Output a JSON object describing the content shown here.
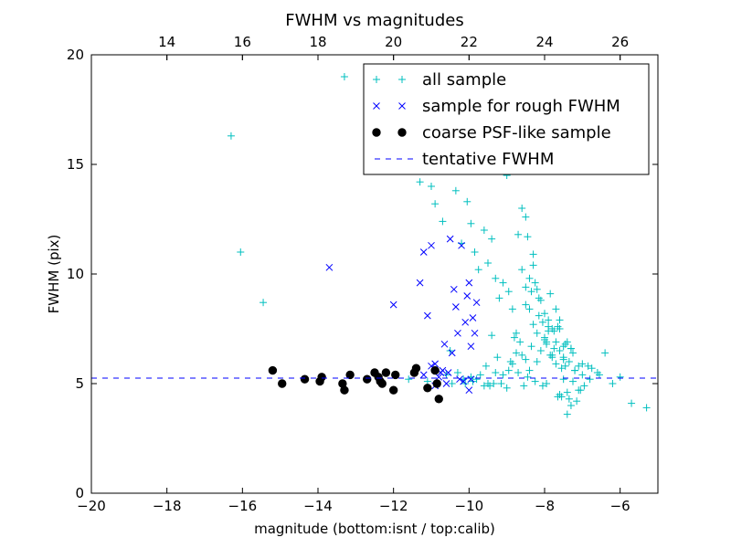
{
  "chart_data": {
    "type": "scatter",
    "title": "FWHM vs magnitudes",
    "xlabel": "magnitude (bottom:isnt / top:calib)",
    "ylabel": "FWHM (pix)",
    "xlim": [
      -20,
      -5
    ],
    "ylim": [
      0,
      20
    ],
    "x_ticks": [
      -20,
      -18,
      -16,
      -14,
      -12,
      -10,
      -8,
      -6
    ],
    "x_tick_labels": [
      "−20",
      "−18",
      "−16",
      "−14",
      "−12",
      "−10",
      "−8",
      "−6"
    ],
    "y_ticks": [
      0,
      5,
      10,
      15,
      20
    ],
    "y_tick_labels": [
      "0",
      "5",
      "10",
      "15",
      "20"
    ],
    "top_axis": {
      "offset": 32.0,
      "ticks": [
        14,
        16,
        18,
        20,
        22,
        24,
        26
      ],
      "tick_labels": [
        "14",
        "16",
        "18",
        "20",
        "22",
        "24",
        "26"
      ]
    },
    "grid": false,
    "legend_position": "top-right",
    "series": [
      {
        "name": "all sample",
        "marker": "plus",
        "color": "#00bfbf",
        "x": [
          -16.3,
          -16.05,
          -15.45,
          -13.3,
          -11.3,
          -11.0,
          -10.9,
          -10.7,
          -10.5,
          -10.35,
          -10.2,
          -10.05,
          -9.95,
          -9.85,
          -9.75,
          -9.6,
          -9.5,
          -9.4,
          -9.3,
          -9.2,
          -9.1,
          -9.0,
          -8.95,
          -8.85,
          -8.8,
          -8.7,
          -8.6,
          -8.5,
          -8.45,
          -8.4,
          -8.3,
          -8.2,
          -8.1,
          -8.0,
          -7.9,
          -7.8,
          -7.7,
          -7.6,
          -7.5,
          -7.35,
          -7.2,
          -7.0,
          -6.8,
          -6.6,
          -6.4,
          -6.2,
          -6.0,
          -5.7,
          -5.3,
          -8.6,
          -8.3,
          -8.1,
          -7.9,
          -8.9,
          -9.1,
          -8.8,
          -8.5,
          -8.2,
          -7.95,
          -7.6,
          -7.45,
          -7.3,
          -8.75,
          -8.35,
          -8.05,
          -7.75,
          -9.4,
          -9.25,
          -8.65,
          -8.15,
          -7.85,
          -7.55,
          -7.25,
          -7.05,
          -6.95,
          -8.5,
          -8.0,
          -7.7,
          -8.4,
          -8.1,
          -7.8,
          -7.5,
          -9.0,
          -8.7,
          -8.25,
          -7.65,
          -7.4,
          -7.15,
          -6.85,
          -9.8,
          -9.7,
          -9.5,
          -8.85,
          -8.55,
          -8.45,
          -8.05,
          -7.95,
          -7.6,
          -7.35,
          -7.1,
          -9.55,
          -9.3,
          -9.15,
          -10.1,
          -9.9,
          -11.6,
          -11.1,
          -10.6,
          -10.45,
          -10.3,
          -10.15,
          -9.95,
          -9.6,
          -9.45,
          -9.35,
          -8.95,
          -8.75,
          -8.35,
          -8.2,
          -7.9,
          -7.65,
          -7.45,
          -7.25,
          -7.0,
          -6.75,
          -6.55,
          -8.6,
          -8.3,
          -8.0,
          -7.75,
          -7.5,
          -7.2,
          -7.3,
          -7.4,
          -7.55,
          -8.4,
          -8.15,
          -7.85,
          -7.7,
          -7.6,
          -7.4,
          -7.3,
          -7.1,
          -8.5,
          -8.25,
          -7.95,
          -7.8,
          -7.5
        ],
        "y": [
          16.3,
          11.0,
          8.7,
          19.0,
          14.2,
          14.0,
          13.2,
          12.4,
          6.5,
          13.8,
          11.4,
          13.3,
          12.3,
          11.0,
          10.2,
          12.0,
          10.5,
          11.6,
          9.8,
          8.9,
          9.6,
          14.5,
          9.2,
          8.4,
          15.8,
          11.8,
          10.2,
          12.6,
          11.7,
          9.8,
          10.4,
          9.3,
          8.8,
          8.2,
          7.9,
          7.5,
          6.9,
          6.5,
          6.2,
          6.0,
          5.6,
          5.4,
          5.2,
          5.5,
          6.4,
          5.0,
          5.3,
          4.1,
          3.9,
          13.0,
          10.9,
          14.8,
          7.6,
          6.0,
          5.4,
          7.1,
          8.6,
          7.3,
          6.8,
          7.9,
          5.8,
          6.6,
          6.4,
          9.2,
          7.8,
          7.4,
          7.2,
          6.2,
          6.9,
          8.1,
          6.3,
          5.7,
          5.1,
          4.7,
          4.9,
          6.1,
          7.0,
          5.9,
          5.6,
          6.5,
          6.2,
          5.2,
          4.8,
          5.5,
          5.1,
          4.4,
          4.6,
          4.2,
          5.8,
          5.2,
          5.4,
          5.0,
          5.9,
          4.9,
          5.3,
          4.9,
          5.0,
          4.5,
          4.3,
          4.7,
          5.8,
          5.5,
          5.0,
          5.0,
          5.1,
          5.2,
          5.1,
          5.4,
          5.0,
          5.5,
          5.2,
          5.3,
          4.9,
          4.9,
          5.0,
          5.6,
          7.3,
          6.7,
          6.0,
          7.4,
          7.6,
          6.8,
          6.4,
          5.9,
          5.7,
          5.4,
          6.3,
          7.7,
          7.1,
          6.6,
          6.1,
          5.6,
          4.0,
          3.6,
          4.4,
          8.4,
          8.9,
          9.1,
          8.4,
          7.5,
          6.9,
          6.6,
          5.8,
          9.4,
          9.6,
          6.9,
          6.3,
          6.7
        ]
      },
      {
        "name": "sample for rough FWHM",
        "marker": "x",
        "color": "#0000ff",
        "x": [
          -13.7,
          -12.0,
          -11.3,
          -11.2,
          -11.1,
          -11.0,
          -10.9,
          -10.75,
          -10.5,
          -10.4,
          -10.35,
          -10.3,
          -10.2,
          -10.1,
          -10.05,
          -10.0,
          -9.95,
          -9.9,
          -9.85,
          -9.8,
          -11.0,
          -10.8,
          -10.55,
          -10.25,
          -10.15,
          -10.65,
          -10.9,
          -11.2,
          -10.7,
          -10.45,
          -10.6,
          -10.0,
          -9.95
        ],
        "y": [
          10.3,
          8.6,
          9.6,
          11.0,
          8.1,
          11.3,
          5.9,
          5.5,
          11.6,
          9.3,
          8.5,
          7.3,
          11.3,
          7.8,
          9.0,
          9.6,
          6.7,
          8.0,
          7.3,
          8.7,
          5.8,
          5.3,
          5.5,
          5.2,
          5.1,
          6.8,
          4.9,
          5.4,
          5.6,
          6.4,
          5.0,
          4.7,
          5.2
        ]
      },
      {
        "name": "coarse PSF-like sample",
        "marker": "circle",
        "color": "#000000",
        "x": [
          -15.2,
          -14.95,
          -14.35,
          -13.95,
          -13.9,
          -13.35,
          -13.3,
          -13.15,
          -12.7,
          -12.5,
          -12.4,
          -12.35,
          -12.3,
          -12.2,
          -12.0,
          -11.95,
          -11.45,
          -11.4,
          -11.1,
          -10.9,
          -10.85,
          -10.8
        ],
        "y": [
          5.6,
          5.0,
          5.2,
          5.1,
          5.3,
          5.0,
          4.7,
          5.4,
          5.2,
          5.5,
          5.3,
          5.1,
          5.0,
          5.5,
          4.7,
          5.4,
          5.5,
          5.7,
          4.8,
          5.6,
          5.0,
          4.3
        ]
      },
      {
        "name": "tentative FWHM",
        "marker": "dashed-line",
        "color": "#0000ff",
        "value": 5.25
      }
    ]
  }
}
